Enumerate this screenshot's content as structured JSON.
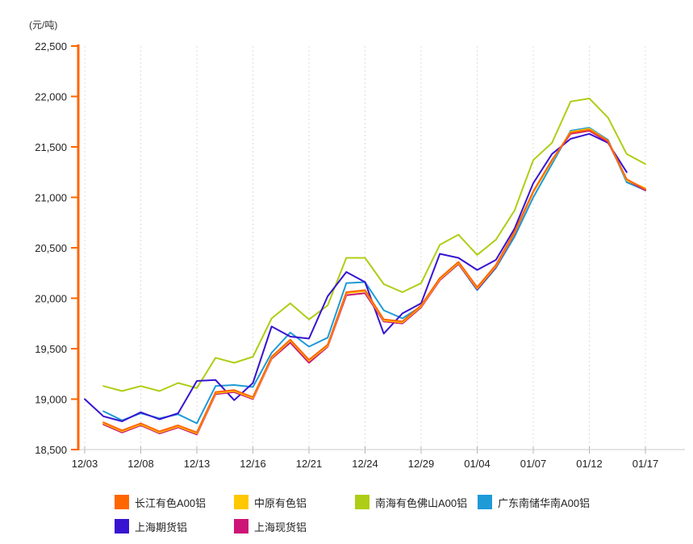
{
  "chart_data": {
    "type": "line",
    "title": "",
    "unit_label": "(元/吨)",
    "xlabel": "",
    "ylabel": "元/吨",
    "ylim": [
      18500,
      22500
    ],
    "y_tick_step": 500,
    "y_tick_labels": [
      "22,500",
      "22,000",
      "21,500",
      "21,000",
      "20,500",
      "20,000",
      "19,500",
      "19,000",
      "18,500"
    ],
    "grid": "vertical-dashed",
    "legend_position": "bottom",
    "x": [
      "12/03",
      "12/06",
      "12/07",
      "12/08",
      "12/09",
      "12/10",
      "12/13",
      "12/14",
      "12/15",
      "12/16",
      "12/17",
      "12/20",
      "12/21",
      "12/22",
      "12/23",
      "12/24",
      "12/27",
      "12/28",
      "12/29",
      "12/30",
      "12/31",
      "01/04",
      "01/05",
      "01/06",
      "01/07",
      "01/10",
      "01/11",
      "01/12",
      "01/13",
      "01/14",
      "01/17"
    ],
    "x_tick_labels": [
      "12/03",
      "12/08",
      "12/13",
      "12/16",
      "12/21",
      "12/24",
      "12/29",
      "01/04",
      "01/07",
      "01/12",
      "01/17"
    ],
    "x_tick_indices": [
      0,
      3,
      6,
      9,
      12,
      15,
      18,
      21,
      24,
      27,
      30
    ],
    "series": [
      {
        "name": "长江有色A00铝",
        "color": "#FF6600",
        "values": [
          null,
          18770,
          18690,
          18760,
          18680,
          18740,
          18670,
          19070,
          19090,
          19020,
          19420,
          19590,
          19390,
          19540,
          20060,
          20080,
          19790,
          19770,
          19930,
          20200,
          20360,
          20110,
          20330,
          20660,
          21060,
          21370,
          21640,
          21670,
          21560,
          21180,
          21080
        ]
      },
      {
        "name": "中原有色铝",
        "color": "#FFC800",
        "values": [
          null,
          18760,
          18680,
          18750,
          18670,
          18730,
          18660,
          19060,
          19080,
          19010,
          19410,
          19580,
          19380,
          19530,
          20050,
          20070,
          19780,
          19760,
          19920,
          20190,
          20350,
          20100,
          20320,
          20650,
          21050,
          21360,
          21650,
          21680,
          21560,
          21170,
          21090
        ]
      },
      {
        "name": "南海有色佛山A00铝",
        "color": "#ADCE15",
        "values": [
          null,
          19130,
          19080,
          19130,
          19080,
          19160,
          19110,
          19410,
          19360,
          19420,
          19800,
          19950,
          19790,
          19930,
          20400,
          20400,
          20140,
          20060,
          20150,
          20530,
          20630,
          20430,
          20580,
          20870,
          21370,
          21540,
          21950,
          21980,
          21790,
          21430,
          21330
        ]
      },
      {
        "name": "广东南储华南A00铝",
        "color": "#1E9AD7",
        "values": [
          null,
          18880,
          18790,
          18860,
          18810,
          18850,
          18760,
          19130,
          19140,
          19120,
          19460,
          19660,
          19520,
          19610,
          20150,
          20160,
          19880,
          19800,
          19920,
          20180,
          20340,
          20080,
          20300,
          20610,
          21000,
          21330,
          21660,
          21690,
          21570,
          21150,
          21070
        ]
      },
      {
        "name": "上海期货铝",
        "color": "#3813D1",
        "values": [
          19000,
          18830,
          18780,
          18870,
          18800,
          18860,
          19180,
          19190,
          18990,
          19160,
          19720,
          19620,
          19600,
          20020,
          20260,
          20160,
          19650,
          19850,
          19950,
          20440,
          20400,
          20280,
          20380,
          20690,
          21140,
          21430,
          21580,
          21630,
          21540,
          21250,
          null
        ]
      },
      {
        "name": "上海现货铝",
        "color": "#CC1577",
        "values": [
          null,
          18750,
          18670,
          18740,
          18660,
          18720,
          18650,
          19050,
          19070,
          19000,
          19400,
          19560,
          19360,
          19520,
          20030,
          20050,
          19770,
          19750,
          19910,
          20180,
          20340,
          20090,
          20310,
          20640,
          21050,
          21370,
          21630,
          21660,
          21550,
          21170,
          21070
        ]
      }
    ],
    "axis_colors": {
      "y_spine": "#FF6600",
      "x_line": "#C8C8C8",
      "grid": "#DCDCDC",
      "tick": "#B4B4B4",
      "text": "#222222"
    }
  }
}
